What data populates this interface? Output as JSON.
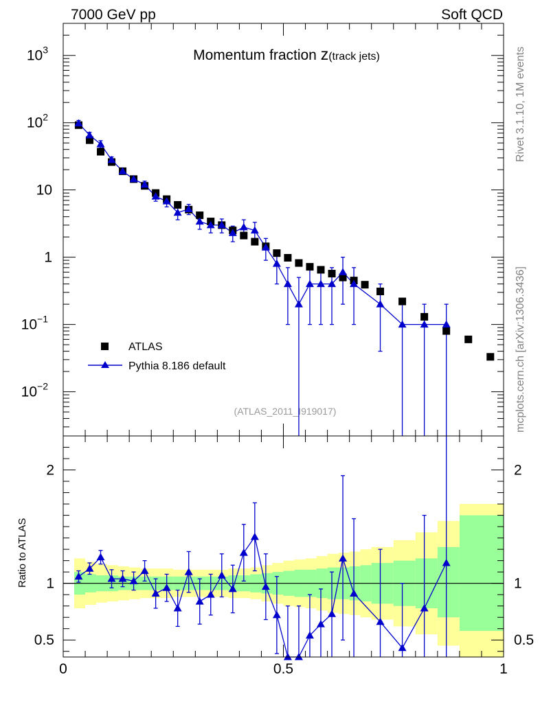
{
  "header": {
    "left": "7000 GeV pp",
    "right": "Soft QCD"
  },
  "side_labels": {
    "rivet": "Rivet 3.1.10,  1M events",
    "mcplots": "mcplots.cern.ch [arXiv:1306.3436]"
  },
  "colors": {
    "data": "#000000",
    "mc": "#0000cc",
    "band_inner": "#99ff99",
    "band_outer": "#ffff99"
  },
  "chart_data": [
    {
      "type": "scatter",
      "title_main": "Momentum fraction ",
      "title_z": "z",
      "title_sub": "(track jets)",
      "analysis": "(ATLAS_2011_I919017)",
      "yscale": "log",
      "xlim": [
        0,
        1
      ],
      "ylim": [
        0.0022,
        3000
      ],
      "xticks": [
        "0",
        "0.5",
        "1"
      ],
      "yticks": [
        {
          "value": 1000,
          "base": "10",
          "exp": "3"
        },
        {
          "value": 100,
          "base": "10",
          "exp": "2"
        },
        {
          "value": 10,
          "base": "10",
          "exp": ""
        },
        {
          "value": 1,
          "base": "1",
          "exp": ""
        },
        {
          "value": 0.1,
          "base": "10",
          "exp": "−1"
        },
        {
          "value": 0.01,
          "base": "10",
          "exp": "−2"
        }
      ],
      "legend": [
        "ATLAS",
        "Pythia 8.186 default"
      ],
      "series": [
        {
          "name": "ATLAS",
          "x": [
            0.035,
            0.06,
            0.085,
            0.11,
            0.135,
            0.16,
            0.185,
            0.21,
            0.235,
            0.26,
            0.285,
            0.31,
            0.335,
            0.36,
            0.385,
            0.41,
            0.435,
            0.46,
            0.485,
            0.51,
            0.535,
            0.56,
            0.585,
            0.61,
            0.635,
            0.66,
            0.685,
            0.72,
            0.77,
            0.82,
            0.87,
            0.92,
            0.97
          ],
          "y": [
            92,
            55,
            37,
            26,
            19,
            14.5,
            11.5,
            9,
            7.3,
            6,
            5.1,
            4.2,
            3.4,
            3,
            2.5,
            2.1,
            1.7,
            1.45,
            1.15,
            0.98,
            0.82,
            0.72,
            0.65,
            0.57,
            0.5,
            0.45,
            0.39,
            0.31,
            0.22,
            0.13,
            0.08,
            0.06,
            0.033
          ]
        },
        {
          "name": "Pythia 8.186 default",
          "x": [
            0.035,
            0.06,
            0.085,
            0.11,
            0.135,
            0.16,
            0.185,
            0.21,
            0.235,
            0.26,
            0.285,
            0.31,
            0.335,
            0.36,
            0.385,
            0.41,
            0.435,
            0.46,
            0.485,
            0.51,
            0.535,
            0.56,
            0.585,
            0.61,
            0.635,
            0.66,
            0.72,
            0.77,
            0.82,
            0.87
          ],
          "y": [
            98,
            65,
            48,
            28,
            19,
            14.5,
            12,
            8,
            6.8,
            4.6,
            5.2,
            3.4,
            3.0,
            3.0,
            2.3,
            2.8,
            2.5,
            1.4,
            0.8,
            0.4,
            0.2,
            0.4,
            0.4,
            0.4,
            0.6,
            0.4,
            0.2,
            0.1,
            0.1,
            0.1
          ],
          "ylo": [
            88,
            58,
            42,
            25,
            17,
            13,
            10.5,
            6.8,
            5.6,
            3.6,
            4.3,
            2.6,
            2.3,
            2.3,
            1.7,
            2.0,
            1.7,
            0.9,
            0.4,
            0.1,
            0.002,
            0.1,
            0.1,
            0.1,
            0.2,
            0.1,
            0.04,
            0.002,
            0.002,
            0.002
          ],
          "yhi": [
            108,
            72,
            54,
            31,
            21,
            16,
            13.5,
            9.2,
            8,
            5.6,
            6.1,
            4.2,
            3.7,
            3.7,
            2.9,
            3.6,
            3.3,
            1.9,
            1.2,
            0.7,
            0.5,
            0.7,
            0.7,
            0.7,
            1.0,
            0.7,
            0.4,
            0.2,
            0.2,
            0.2
          ]
        }
      ]
    },
    {
      "type": "line",
      "ylabel": "Ratio to ATLAS",
      "xlim": [
        0,
        1
      ],
      "ylim": [
        0.35,
        2.3
      ],
      "xticks": [
        "0",
        "0.5",
        "1"
      ],
      "yticks": [
        "0.5",
        "1",
        "2"
      ],
      "band_edges": [
        0.025,
        0.05,
        0.075,
        0.1,
        0.125,
        0.15,
        0.175,
        0.2,
        0.225,
        0.25,
        0.275,
        0.3,
        0.325,
        0.35,
        0.375,
        0.4,
        0.425,
        0.45,
        0.475,
        0.5,
        0.525,
        0.55,
        0.575,
        0.6,
        0.625,
        0.65,
        0.675,
        0.7,
        0.75,
        0.8,
        0.85,
        0.9,
        1.0
      ],
      "band_inner_lo": [
        0.9,
        0.92,
        0.93,
        0.93,
        0.94,
        0.94,
        0.94,
        0.94,
        0.94,
        0.94,
        0.94,
        0.94,
        0.94,
        0.94,
        0.93,
        0.93,
        0.92,
        0.91,
        0.9,
        0.89,
        0.88,
        0.88,
        0.87,
        0.86,
        0.86,
        0.85,
        0.84,
        0.82,
        0.8,
        0.78,
        0.7,
        0.58
      ],
      "band_inner_hi": [
        1.1,
        1.08,
        1.07,
        1.07,
        1.06,
        1.06,
        1.06,
        1.06,
        1.06,
        1.06,
        1.06,
        1.06,
        1.06,
        1.06,
        1.07,
        1.07,
        1.08,
        1.09,
        1.1,
        1.11,
        1.12,
        1.12,
        1.13,
        1.14,
        1.14,
        1.15,
        1.16,
        1.18,
        1.2,
        1.22,
        1.32,
        1.6
      ],
      "band_outer_lo": [
        0.78,
        0.81,
        0.83,
        0.84,
        0.85,
        0.86,
        0.87,
        0.87,
        0.87,
        0.88,
        0.88,
        0.88,
        0.88,
        0.88,
        0.87,
        0.87,
        0.86,
        0.84,
        0.82,
        0.8,
        0.79,
        0.78,
        0.76,
        0.74,
        0.73,
        0.72,
        0.7,
        0.68,
        0.62,
        0.55,
        0.45,
        0.3
      ],
      "band_outer_hi": [
        1.22,
        1.19,
        1.17,
        1.16,
        1.15,
        1.14,
        1.13,
        1.13,
        1.13,
        1.12,
        1.12,
        1.12,
        1.12,
        1.12,
        1.13,
        1.13,
        1.14,
        1.16,
        1.18,
        1.2,
        1.21,
        1.22,
        1.24,
        1.26,
        1.27,
        1.28,
        1.3,
        1.32,
        1.38,
        1.45,
        1.55,
        1.7
      ],
      "series": [
        {
          "name": "Pythia 8.186 default",
          "x": [
            0.035,
            0.06,
            0.085,
            0.11,
            0.135,
            0.16,
            0.185,
            0.21,
            0.235,
            0.26,
            0.285,
            0.31,
            0.335,
            0.36,
            0.385,
            0.41,
            0.435,
            0.46,
            0.485,
            0.51,
            0.535,
            0.56,
            0.585,
            0.61,
            0.635,
            0.66,
            0.72,
            0.77,
            0.82,
            0.87
          ],
          "y": [
            1.06,
            1.13,
            1.23,
            1.04,
            1.04,
            1.02,
            1.11,
            0.91,
            0.96,
            0.78,
            1.1,
            0.84,
            0.9,
            1.07,
            0.95,
            1.27,
            1.41,
            0.97,
            0.72,
            0.32,
            0.32,
            0.54,
            0.64,
            0.73,
            1.22,
            0.91,
            0.66,
            0.43,
            0.78,
            1.18
          ],
          "ylo": [
            1.01,
            1.08,
            1.17,
            0.96,
            0.97,
            0.94,
            1.02,
            0.78,
            0.84,
            0.62,
            0.92,
            0.64,
            0.72,
            0.88,
            0.74,
            1.02,
            1.11,
            0.68,
            0.38,
            0.2,
            0.2,
            0.25,
            0.25,
            0.2,
            0.5,
            0.25,
            0.1,
            0.1,
            0.1,
            0.2
          ],
          "yhi": [
            1.11,
            1.18,
            1.29,
            1.12,
            1.11,
            1.1,
            1.2,
            1.04,
            1.08,
            0.94,
            1.28,
            1.04,
            1.08,
            1.26,
            1.16,
            1.52,
            1.71,
            1.26,
            1.06,
            0.8,
            0.8,
            0.9,
            0.95,
            1.1,
            1.95,
            1.57,
            1.3,
            1.0,
            1.6,
            2.5
          ]
        }
      ]
    }
  ]
}
